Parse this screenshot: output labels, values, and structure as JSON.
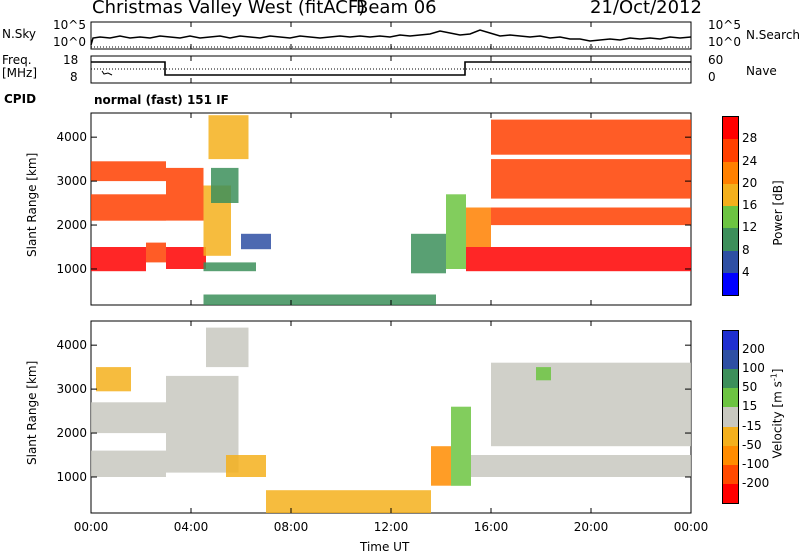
{
  "header": {
    "station": "Christmas Valley West (fitACF)",
    "beam": "Beam 06",
    "date": "21/Oct/2012",
    "cpid_label": "CPID",
    "cpid_value": "normal (fast) 151 IF"
  },
  "top_panels": {
    "nsky_label": "N.Sky",
    "nsky_ticks": [
      "10^5",
      "10^0"
    ],
    "nsearch_label": "N.Search",
    "nsearch_ticks": [
      "10^5",
      "10^0"
    ],
    "freq_label_1": "Freq.",
    "freq_label_2": "[MHz]",
    "freq_ticks": [
      "18",
      "8"
    ],
    "nave_label": "Nave",
    "nave_ticks": [
      "60",
      "0"
    ]
  },
  "colors": {
    "power_scale": [
      "#0000ff",
      "#2e4fa3",
      "#3c8f5a",
      "#6cc441",
      "#f4b01c",
      "#ff8000",
      "#ff4000",
      "#ff0000"
    ],
    "velocity_scale": [
      "#ff0000",
      "#ff4a00",
      "#ff8c00",
      "#f4b01c",
      "#c8c8c0",
      "#6cc441",
      "#3c8f5a",
      "#2e4fa3",
      "#1f2fd0"
    ]
  },
  "chart_data": [
    {
      "type": "heatmap",
      "name": "power",
      "ylabel": "Slant Range [km]",
      "colorbar_label": "Power [dB]",
      "colorbar_ticks": [
        "28",
        "24",
        "20",
        "16",
        "12",
        "8",
        "4"
      ],
      "yticks": [
        "4000",
        "3000",
        "2000",
        "1000"
      ],
      "ytick_values": [
        4000,
        3000,
        2000,
        1000
      ],
      "ylim": [
        180,
        4550
      ],
      "xlim": [
        0,
        24
      ],
      "regions": [
        {
          "t0": 0.0,
          "t1": 3.0,
          "r0": 3000,
          "r1": 3450,
          "v": 27
        },
        {
          "t0": 0.0,
          "t1": 3.0,
          "r0": 2100,
          "r1": 2700,
          "v": 26
        },
        {
          "t0": 0.0,
          "t1": 2.2,
          "r0": 950,
          "r1": 1500,
          "v": 29
        },
        {
          "t0": 2.2,
          "t1": 3.0,
          "r0": 1150,
          "r1": 1600,
          "v": 25
        },
        {
          "t0": 3.0,
          "t1": 4.5,
          "r0": 2100,
          "r1": 3300,
          "v": 24
        },
        {
          "t0": 3.0,
          "t1": 4.6,
          "r0": 1000,
          "r1": 1500,
          "v": 28
        },
        {
          "t0": 4.5,
          "t1": 5.6,
          "r0": 1300,
          "r1": 2900,
          "v": 17
        },
        {
          "t0": 4.8,
          "t1": 5.9,
          "r0": 2500,
          "r1": 3300,
          "v": 9
        },
        {
          "t0": 4.7,
          "t1": 6.3,
          "r0": 3500,
          "r1": 4500,
          "v": 18
        },
        {
          "t0": 6.0,
          "t1": 7.2,
          "r0": 1450,
          "r1": 1800,
          "v": 7
        },
        {
          "t0": 4.5,
          "t1": 6.6,
          "r0": 950,
          "r1": 1150,
          "v": 9
        },
        {
          "t0": 4.5,
          "t1": 13.8,
          "r0": 180,
          "r1": 420,
          "v": 10
        },
        {
          "t0": 12.8,
          "t1": 14.2,
          "r0": 900,
          "r1": 1800,
          "v": 8
        },
        {
          "t0": 14.2,
          "t1": 15.0,
          "r0": 1000,
          "r1": 2700,
          "v": 14
        },
        {
          "t0": 15.0,
          "t1": 16.0,
          "r0": 1500,
          "r1": 2400,
          "v": 20
        },
        {
          "t0": 15.0,
          "t1": 24.0,
          "r0": 950,
          "r1": 1500,
          "v": 29
        },
        {
          "t0": 16.0,
          "t1": 24.0,
          "r0": 2000,
          "r1": 2400,
          "v": 27
        },
        {
          "t0": 16.0,
          "t1": 24.0,
          "r0": 2600,
          "r1": 3500,
          "v": 26
        },
        {
          "t0": 16.0,
          "t1": 24.0,
          "r0": 3600,
          "r1": 4400,
          "v": 24
        }
      ]
    },
    {
      "type": "heatmap",
      "name": "velocity",
      "ylabel": "Slant Range [km]",
      "xlabel": "Time UT",
      "colorbar_label_main": "Velocity [m s",
      "colorbar_label_sup": "-1",
      "colorbar_label_end": "]",
      "colorbar_ticks": [
        "200",
        "100",
        "50",
        "15",
        "-15",
        "-50",
        "-100",
        "-200"
      ],
      "yticks": [
        "4000",
        "3000",
        "2000",
        "1000"
      ],
      "ytick_values": [
        4000,
        3000,
        2000,
        1000
      ],
      "xticks": [
        "00:00",
        "04:00",
        "08:00",
        "12:00",
        "16:00",
        "20:00",
        "00:00"
      ],
      "xtick_values": [
        0,
        4,
        8,
        12,
        16,
        20,
        24
      ],
      "ylim": [
        180,
        4550
      ],
      "xlim": [
        0,
        24
      ],
      "regions": [
        {
          "t0": 0.0,
          "t1": 3.0,
          "r0": 1000,
          "r1": 1600,
          "v": 0
        },
        {
          "t0": 0.0,
          "t1": 3.0,
          "r0": 2000,
          "r1": 2700,
          "v": 0
        },
        {
          "t0": 0.2,
          "t1": 1.6,
          "r0": 2950,
          "r1": 3500,
          "v": -40
        },
        {
          "t0": 3.0,
          "t1": 5.9,
          "r0": 1100,
          "r1": 3300,
          "v": 0
        },
        {
          "t0": 4.6,
          "t1": 6.3,
          "r0": 3500,
          "r1": 4400,
          "v": 5
        },
        {
          "t0": 5.4,
          "t1": 7.0,
          "r0": 1000,
          "r1": 1500,
          "v": -45
        },
        {
          "t0": 7.0,
          "t1": 13.6,
          "r0": 180,
          "r1": 700,
          "v": -40
        },
        {
          "t0": 13.6,
          "t1": 14.4,
          "r0": 800,
          "r1": 1700,
          "v": -60
        },
        {
          "t0": 14.4,
          "t1": 15.2,
          "r0": 800,
          "r1": 2600,
          "v": 40
        },
        {
          "t0": 15.2,
          "t1": 24.0,
          "r0": 1000,
          "r1": 1500,
          "v": 0
        },
        {
          "t0": 16.0,
          "t1": 24.0,
          "r0": 1700,
          "r1": 3600,
          "v": 0
        },
        {
          "t0": 17.8,
          "t1": 18.4,
          "r0": 3200,
          "r1": 3500,
          "v": 40
        }
      ]
    }
  ]
}
